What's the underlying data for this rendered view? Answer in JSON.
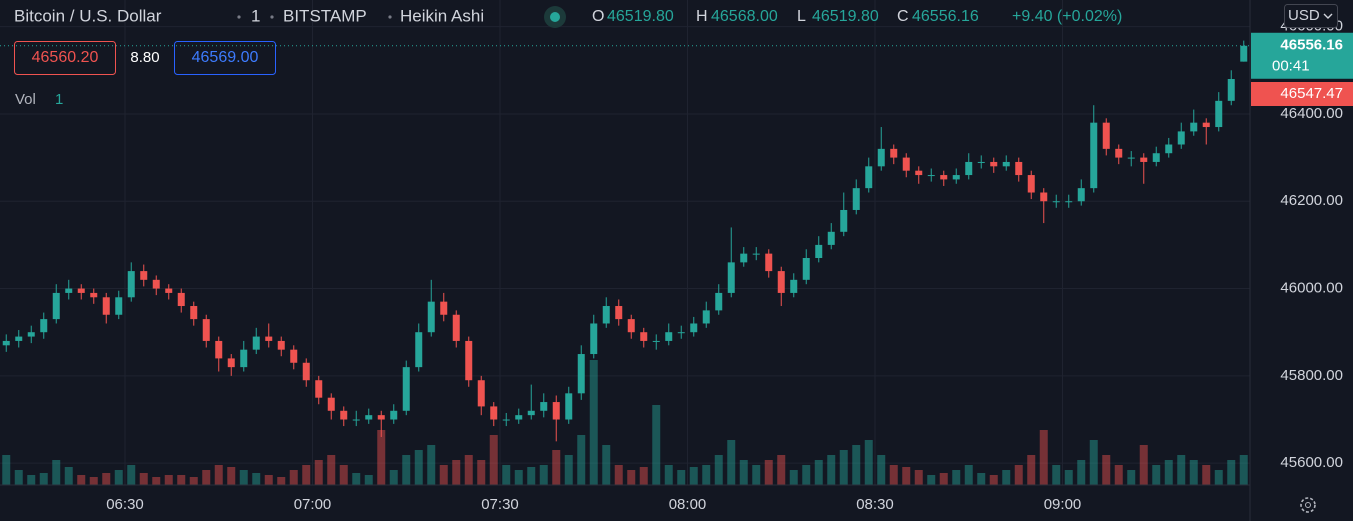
{
  "header": {
    "symbol": "Bitcoin / U.S. Dollar",
    "interval": "1",
    "exchange": "BITSTAMP",
    "chart_style": "Heikin Ashi",
    "ohlc": [
      {
        "key": "O",
        "value": "46519.80"
      },
      {
        "key": "H",
        "value": "46568.00"
      },
      {
        "key": "L",
        "value": "46519.80"
      },
      {
        "key": "C",
        "value": "46556.16"
      }
    ],
    "change": "+9.40 (+0.02%)"
  },
  "trade": {
    "sell": "46560.20",
    "spread": "8.80",
    "buy": "46569.00"
  },
  "indicator": {
    "name": "Vol",
    "length": "1"
  },
  "price_scale": {
    "currency": "USD",
    "last_price": "46556.16",
    "countdown": "00:41",
    "tag": "46547.47"
  },
  "chart_data": {
    "type": "candlestick",
    "up_color": "#26a69a",
    "down_color": "#ef5350",
    "grid": true,
    "xlim": [
      370,
      570
    ],
    "ylim": [
      45550,
      46661
    ],
    "vlim": [
      0,
      140
    ],
    "xticks": [
      {
        "value": 390,
        "label": "06:30"
      },
      {
        "value": 420,
        "label": "07:00"
      },
      {
        "value": 450,
        "label": "07:30"
      },
      {
        "value": 480,
        "label": "08:00"
      },
      {
        "value": 510,
        "label": "08:30"
      },
      {
        "value": 540,
        "label": "09:00"
      }
    ],
    "yticks": [
      {
        "value": 45600,
        "label": "45600.00"
      },
      {
        "value": 45800,
        "label": "45800.00"
      },
      {
        "value": 46000,
        "label": "46000.00"
      },
      {
        "value": 46200,
        "label": "46200.00"
      },
      {
        "value": 46400,
        "label": "46400.00"
      },
      {
        "value": 46600,
        "label": "46600.00"
      }
    ],
    "x": [
      371,
      373,
      375,
      377,
      379,
      381,
      383,
      385,
      387,
      389,
      391,
      393,
      395,
      397,
      399,
      401,
      403,
      405,
      407,
      409,
      411,
      413,
      415,
      417,
      419,
      421,
      423,
      425,
      427,
      429,
      431,
      433,
      435,
      437,
      439,
      441,
      443,
      445,
      447,
      449,
      451,
      453,
      455,
      457,
      459,
      461,
      463,
      465,
      467,
      469,
      471,
      473,
      475,
      477,
      479,
      481,
      483,
      485,
      487,
      489,
      491,
      493,
      495,
      497,
      499,
      501,
      503,
      505,
      507,
      509,
      511,
      513,
      515,
      517,
      519,
      521,
      523,
      525,
      527,
      529,
      531,
      533,
      535,
      537,
      539,
      541,
      543,
      545,
      547,
      549,
      551,
      553,
      555,
      557,
      559,
      561,
      563,
      565,
      567,
      569
    ],
    "open": [
      45870,
      45880,
      45890,
      45900,
      45930,
      45990,
      46000,
      45990,
      45980,
      45940,
      45980,
      46040,
      46020,
      46000,
      45990,
      45960,
      45930,
      45880,
      45840,
      45820,
      45860,
      45890,
      45880,
      45860,
      45830,
      45790,
      45750,
      45720,
      45700,
      45700,
      45710,
      45700,
      45720,
      45820,
      45900,
      45970,
      45940,
      45880,
      45790,
      45730,
      45700,
      45700,
      45710,
      45720,
      45740,
      45700,
      45760,
      45850,
      45920,
      45960,
      45930,
      45900,
      45880,
      45880,
      45900,
      45900,
      45920,
      45950,
      45990,
      46060,
      46080,
      46080,
      46040,
      45990,
      46020,
      46070,
      46100,
      46130,
      46180,
      46230,
      46280,
      46320,
      46300,
      46270,
      46260,
      46260,
      46250,
      46260,
      46290,
      46290,
      46280,
      46290,
      46260,
      46220,
      46200,
      46200,
      46200,
      46230,
      46380,
      46320,
      46300,
      46300,
      46290,
      46310,
      46330,
      46360,
      46380,
      46370,
      46430,
      46519.8
    ],
    "high": [
      45895,
      45905,
      45915,
      45945,
      46010,
      46020,
      46010,
      46000,
      45990,
      45995,
      46060,
      46055,
      46030,
      46010,
      46000,
      45970,
      45940,
      45890,
      45850,
      45880,
      45910,
      45920,
      45890,
      45870,
      45840,
      45800,
      45760,
      45730,
      45720,
      45725,
      45720,
      45735,
      45835,
      45920,
      46020,
      45990,
      45950,
      45890,
      45800,
      45740,
      45715,
      45725,
      45780,
      45760,
      45755,
      45775,
      45870,
      45940,
      45980,
      45975,
      45940,
      45910,
      45895,
      45920,
      45915,
      45935,
      45970,
      46010,
      46140,
      46095,
      46095,
      46090,
      46050,
      46035,
      46090,
      46120,
      46150,
      46220,
      46250,
      46300,
      46370,
      46330,
      46310,
      46280,
      46275,
      46270,
      46275,
      46310,
      46305,
      46300,
      46305,
      46300,
      46270,
      46230,
      46215,
      46215,
      46250,
      46420,
      46390,
      46330,
      46315,
      46310,
      46325,
      46345,
      46380,
      46410,
      46390,
      46450,
      46500,
      46568.0
    ],
    "low": [
      45855,
      45865,
      45875,
      45885,
      45920,
      45975,
      45975,
      45965,
      45920,
      45930,
      45970,
      46005,
      45985,
      45975,
      45945,
      45915,
      45865,
      45810,
      45800,
      45810,
      45850,
      45865,
      45845,
      45815,
      45775,
      45735,
      45700,
      45685,
      45685,
      45690,
      45660,
      45690,
      45710,
      45810,
      45890,
      45925,
      45865,
      45775,
      45710,
      45685,
      45685,
      45690,
      45700,
      45705,
      45650,
      45690,
      45745,
      45840,
      45910,
      45915,
      45885,
      45865,
      45860,
      45870,
      45885,
      45890,
      45910,
      45940,
      45980,
      46050,
      46065,
      46025,
      45960,
      45980,
      46010,
      46060,
      46090,
      46120,
      46170,
      46220,
      46270,
      46285,
      46255,
      46240,
      46245,
      46235,
      46240,
      46250,
      46275,
      46265,
      46270,
      46245,
      46205,
      46150,
      46185,
      46185,
      46190,
      46220,
      46305,
      46285,
      46280,
      46240,
      46280,
      46300,
      46320,
      46350,
      46330,
      46360,
      46420,
      46519.8
    ],
    "close": [
      45880,
      45890,
      45900,
      45930,
      45990,
      46000,
      45990,
      45980,
      45940,
      45980,
      46040,
      46020,
      46000,
      45990,
      45960,
      45930,
      45880,
      45840,
      45820,
      45860,
      45890,
      45880,
      45860,
      45830,
      45790,
      45750,
      45720,
      45700,
      45700,
      45710,
      45700,
      45720,
      45820,
      45900,
      45970,
      45940,
      45880,
      45790,
      45730,
      45700,
      45700,
      45710,
      45720,
      45740,
      45700,
      45760,
      45850,
      45920,
      45960,
      45930,
      45900,
      45880,
      45880,
      45900,
      45900,
      45920,
      45950,
      45990,
      46060,
      46080,
      46080,
      46040,
      45990,
      46020,
      46070,
      46100,
      46130,
      46180,
      46230,
      46280,
      46320,
      46300,
      46270,
      46260,
      46260,
      46250,
      46260,
      46290,
      46290,
      46280,
      46290,
      46260,
      46220,
      46200,
      46200,
      46200,
      46230,
      46380,
      46320,
      46300,
      46300,
      46290,
      46310,
      46330,
      46360,
      46380,
      46370,
      46430,
      46480,
      46556.16
    ],
    "volume": [
      30,
      15,
      10,
      12,
      25,
      18,
      10,
      8,
      12,
      15,
      20,
      12,
      8,
      10,
      10,
      8,
      15,
      20,
      18,
      15,
      12,
      10,
      8,
      15,
      20,
      25,
      30,
      20,
      12,
      10,
      55,
      15,
      30,
      35,
      40,
      20,
      25,
      30,
      25,
      50,
      20,
      15,
      18,
      20,
      35,
      30,
      50,
      125,
      40,
      20,
      15,
      18,
      80,
      20,
      15,
      18,
      20,
      30,
      45,
      25,
      20,
      25,
      30,
      15,
      20,
      25,
      30,
      35,
      40,
      45,
      30,
      20,
      18,
      15,
      10,
      12,
      15,
      20,
      12,
      10,
      15,
      20,
      30,
      55,
      20,
      15,
      25,
      45,
      30,
      20,
      15,
      40,
      20,
      25,
      30,
      25,
      20,
      15,
      25,
      30
    ]
  }
}
